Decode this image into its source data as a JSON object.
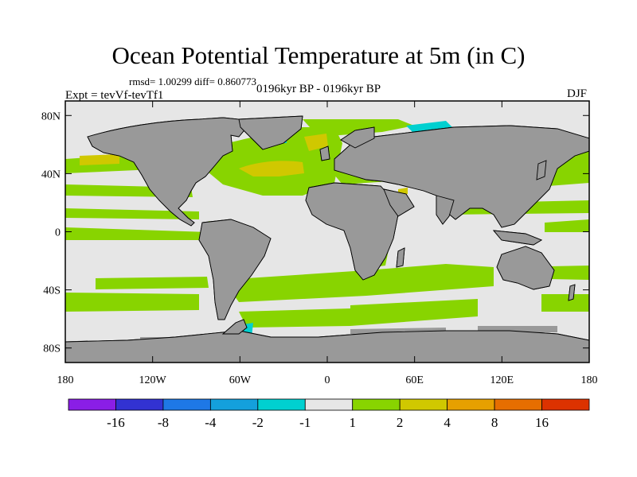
{
  "title": "Ocean Potential Temperature at 5m (in C)",
  "stats": "rmsd= 1.00299 diff= 0.860773",
  "expt": "Expt = tevVf-tevTf1",
  "period": "0196kyr BP - 0196kyr BP",
  "season": "DJF",
  "map": {
    "lat_ticks": [
      {
        "value": 80,
        "label": "80N"
      },
      {
        "value": 40,
        "label": "40N"
      },
      {
        "value": 0,
        "label": "0"
      },
      {
        "value": -40,
        "label": "40S"
      },
      {
        "value": -80,
        "label": "80S"
      }
    ],
    "lon_ticks": [
      {
        "value": -180,
        "label": "180"
      },
      {
        "value": -120,
        "label": "120W"
      },
      {
        "value": -60,
        "label": "60W"
      },
      {
        "value": 0,
        "label": "0"
      },
      {
        "value": 60,
        "label": "60E"
      },
      {
        "value": 120,
        "label": "120E"
      },
      {
        "value": 180,
        "label": "180"
      }
    ],
    "lon_range": [
      -180,
      180
    ],
    "lat_range": [
      -90,
      90
    ],
    "colors": {
      "land": "#999999",
      "neutral": "#e6e6e6",
      "warm1": "#88d400",
      "warm2": "#d0c800",
      "cool1": "#00d0d0",
      "coast": "#000000"
    }
  },
  "colorbar": {
    "boundaries": [
      -16,
      -8,
      -4,
      -2,
      -1,
      1,
      2,
      4,
      8,
      16
    ],
    "colors": [
      "#8a1ee6",
      "#3232d2",
      "#1e78e6",
      "#14a0dc",
      "#00d0d0",
      "#e6e6e6",
      "#88d400",
      "#d0c800",
      "#e6a000",
      "#e66e00",
      "#dc3200"
    ]
  }
}
